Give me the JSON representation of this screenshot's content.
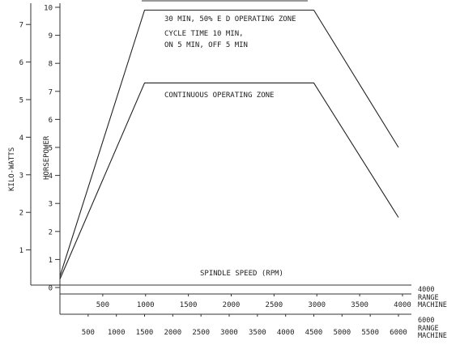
{
  "chart_data": {
    "type": "line",
    "xlabel": "SPINDLE SPEED (RPM)",
    "y_axes": {
      "kw": {
        "label": "KILO-WATTS",
        "ticks": [
          1,
          2,
          3,
          4,
          5,
          6,
          7
        ],
        "range": [
          0,
          7.7
        ]
      },
      "hp": {
        "label": "HORSEPOWER",
        "ticks": [
          0,
          1,
          2,
          3,
          4,
          5,
          6,
          7,
          8,
          9,
          10
        ],
        "range": [
          0,
          10
        ]
      }
    },
    "x_axes": [
      {
        "label": "4000 RANGE MACHINE",
        "ticks": [
          500,
          1000,
          1500,
          2000,
          2500,
          3000,
          3500,
          4000
        ],
        "range": [
          0,
          4000
        ]
      },
      {
        "label": "6000 RANGE MACHINE",
        "ticks": [
          500,
          1000,
          1500,
          2000,
          2500,
          3000,
          3500,
          4000,
          4500,
          5000,
          5500,
          6000
        ],
        "range": [
          0,
          6000
        ]
      }
    ],
    "series": [
      {
        "name": "30 MIN, 50% E D OPERATING ZONE",
        "x_axis": "6000 RANGE MACHINE",
        "unit": "HORSEPOWER",
        "x": [
          0,
          1500,
          4500,
          6000
        ],
        "y": [
          0.4,
          9.9,
          9.9,
          5.0
        ]
      },
      {
        "name": "CONTINUOUS OPERATING ZONE",
        "x_axis": "6000 RANGE MACHINE",
        "unit": "HORSEPOWER",
        "x": [
          0,
          1500,
          4500,
          6000
        ],
        "y": [
          0.3,
          7.3,
          7.3,
          2.5
        ]
      }
    ],
    "annotations": [
      "30 MIN, 50% E D OPERATING ZONE",
      "CYCLE TIME 10 MIN,",
      "ON 5 MIN, OFF 5 MIN",
      "CONTINUOUS OPERATING ZONE"
    ],
    "grid": false,
    "legend": "none"
  }
}
